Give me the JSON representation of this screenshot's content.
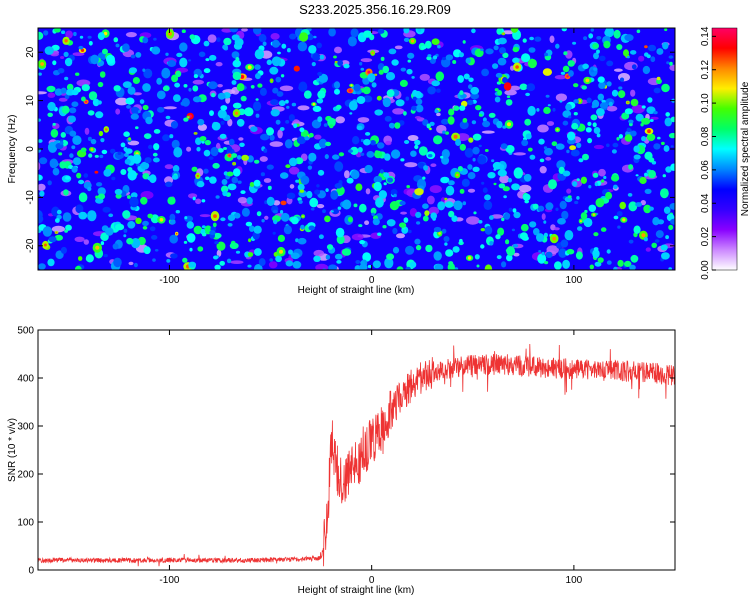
{
  "title": "S233.2025.356.16.29.R09",
  "chart_data": [
    {
      "type": "heatmap",
      "title": "S233.2025.356.16.29.R09",
      "xlabel": "Height of straight line (km)",
      "ylabel": "Frequency (Hz)",
      "xlim": [
        -165,
        150
      ],
      "ylim": [
        -25,
        25
      ],
      "xticks": [
        -100,
        0,
        100
      ],
      "yticks": [
        -20,
        -10,
        0,
        10,
        20
      ],
      "colorbar": {
        "label": "Normalized spectral amplitude",
        "range": [
          0,
          0.145
        ],
        "ticks": [
          "0.00",
          "0.02",
          "0.04",
          "0.06",
          "0.08",
          "0.10",
          "0.12",
          "0.14"
        ],
        "colors": [
          "#ffffff",
          "#cc88ff",
          "#8800ff",
          "#3300ff",
          "#0000ff",
          "#0088ff",
          "#00ffff",
          "#00ff66",
          "#44ff00",
          "#ffee00",
          "#ff8800",
          "#ff0000",
          "#ff0066"
        ]
      },
      "description_values": "speckled noise field, amplitude mostly 0.02-0.05 with scattered peaks up to ~0.13"
    },
    {
      "type": "line",
      "xlabel": "Height of straight line (km)",
      "ylabel": "SNR (10 * v/v)",
      "xlim": [
        -165,
        150
      ],
      "ylim": [
        0,
        500
      ],
      "xticks": [
        -100,
        0,
        100
      ],
      "yticks": [
        0,
        100,
        200,
        300,
        400,
        500
      ],
      "line_color": "#ee3333",
      "series": [
        {
          "name": "SNR",
          "x": [
            -165,
            -150,
            -130,
            -110,
            -90,
            -70,
            -50,
            -35,
            -25,
            -22,
            -20,
            -18,
            -16,
            -14,
            -12,
            -10,
            -8,
            -6,
            -4,
            -2,
            0,
            2,
            4,
            6,
            8,
            10,
            12,
            15,
            20,
            25,
            30,
            40,
            50,
            60,
            70,
            80,
            90,
            100,
            110,
            120,
            130,
            140,
            150
          ],
          "values": [
            20,
            21,
            20,
            20,
            21,
            20,
            21,
            22,
            25,
            90,
            280,
            230,
            190,
            170,
            200,
            220,
            215,
            230,
            250,
            255,
            260,
            270,
            280,
            300,
            320,
            330,
            345,
            365,
            385,
            400,
            412,
            422,
            428,
            428,
            426,
            424,
            420,
            418,
            416,
            415,
            413,
            410,
            405
          ]
        }
      ]
    }
  ]
}
